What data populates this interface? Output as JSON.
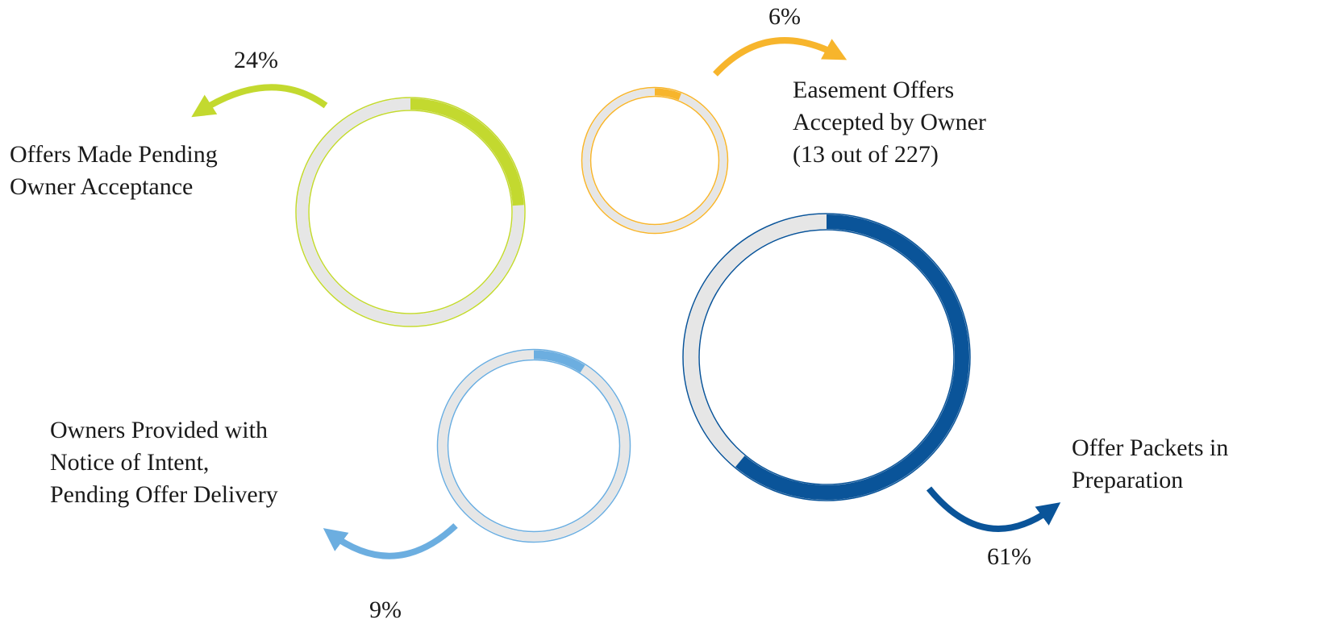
{
  "chart_data": {
    "type": "pie",
    "items": [
      {
        "id": "offers-pending",
        "value": 24,
        "percent_label": "24%",
        "label_lines": [
          "Offers Made Pending",
          "Owner Acceptance"
        ],
        "color": "#c3d92f"
      },
      {
        "id": "easement-accepted",
        "value": 6,
        "percent_label": "6%",
        "label_lines": [
          "Easement Offers",
          "Accepted by Owner",
          "(13 out of 227)"
        ],
        "color": "#f7b52c"
      },
      {
        "id": "notice-of-intent",
        "value": 9,
        "percent_label": "9%",
        "label_lines": [
          "Owners Provided with",
          "Notice of Intent,",
          "Pending Offer Delivery"
        ],
        "color": "#6caee0"
      },
      {
        "id": "offer-packets",
        "value": 61,
        "percent_label": "61%",
        "label_lines": [
          "Offer Packets in",
          "Preparation"
        ],
        "color": "#0a5499"
      }
    ],
    "track_color": "#e6e6e6"
  }
}
